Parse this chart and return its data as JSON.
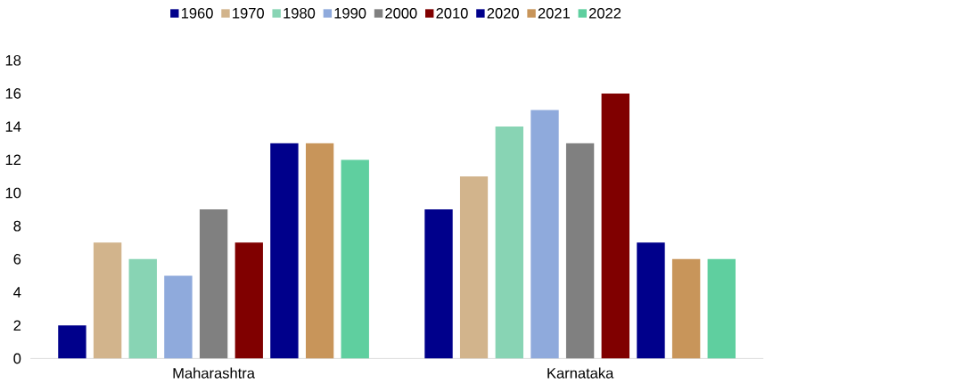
{
  "chart_data": {
    "type": "bar",
    "categories": [
      "Maharashtra",
      "Karnataka"
    ],
    "series": [
      {
        "name": "1960",
        "color": "#00008b",
        "values": [
          2,
          9
        ]
      },
      {
        "name": "1970",
        "color": "#d2b48c",
        "values": [
          7,
          11
        ]
      },
      {
        "name": "1980",
        "color": "#88d4b4",
        "values": [
          6,
          14
        ]
      },
      {
        "name": "1990",
        "color": "#8faadc",
        "values": [
          5,
          15
        ]
      },
      {
        "name": "2000",
        "color": "#808080",
        "values": [
          9,
          13
        ]
      },
      {
        "name": "2010",
        "color": "#800000",
        "values": [
          7,
          16
        ]
      },
      {
        "name": "2020",
        "color": "#00008b",
        "values": [
          13,
          7
        ]
      },
      {
        "name": "2021",
        "color": "#c8955a",
        "values": [
          13,
          6
        ]
      },
      {
        "name": "2022",
        "color": "#5fcf9f",
        "values": [
          12,
          6
        ]
      }
    ],
    "ylim": [
      0,
      18
    ],
    "yticks": [
      0,
      2,
      4,
      6,
      8,
      10,
      12,
      14,
      16,
      18
    ],
    "legend": "top"
  }
}
